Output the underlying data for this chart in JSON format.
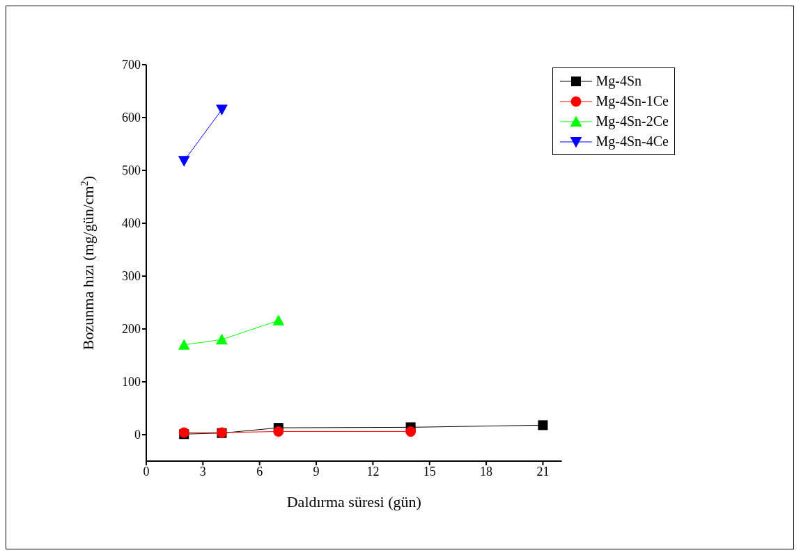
{
  "chart_data": {
    "type": "line",
    "xlabel": "Daldırma süresi (gün)",
    "ylabel": "Bozunma hızı (mg/gün/cm$^{2}$)",
    "x": [
      2,
      4,
      7,
      14,
      21
    ],
    "xlim": [
      0,
      22
    ],
    "xticks": [
      0,
      3,
      6,
      9,
      12,
      15,
      18,
      21
    ],
    "ylim": [
      -50,
      700
    ],
    "yticks": [
      0,
      100,
      200,
      300,
      400,
      500,
      600,
      700
    ],
    "grid": false,
    "legend": "top right",
    "line_style": "solid",
    "series": [
      {
        "name": "Mg-4Sn",
        "color": "#000000",
        "marker": "square",
        "values": [
          1,
          3,
          13,
          14,
          18
        ]
      },
      {
        "name": "Mg-4Sn-1Ce",
        "color": "#ff0000",
        "marker": "circle",
        "values": [
          4,
          4,
          6,
          6,
          null
        ]
      },
      {
        "name": "Mg-4Sn-2Ce",
        "color": "#00ff00",
        "marker": "triangle",
        "values": [
          170,
          180,
          216,
          null,
          null
        ]
      },
      {
        "name": "Mg-4Sn-4Ce",
        "color": "#0000ff",
        "marker": "triangle-down",
        "values": [
          518,
          615,
          null,
          null,
          null
        ]
      }
    ]
  }
}
